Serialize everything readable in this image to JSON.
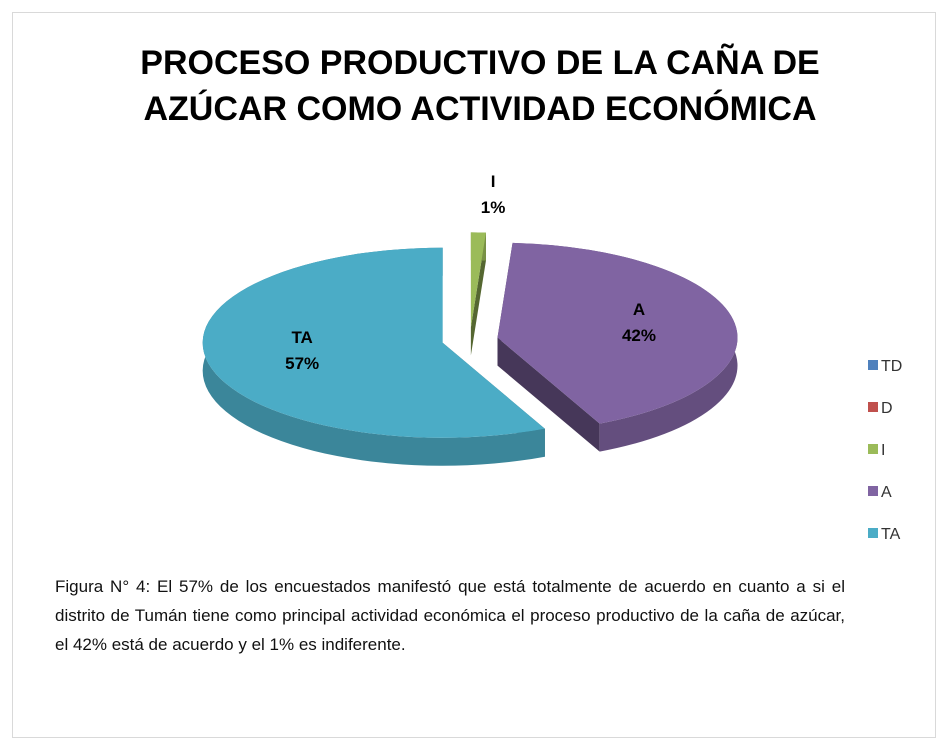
{
  "chart_data": {
    "type": "pie",
    "title": "PROCESO PRODUCTIVO DE LA CAÑA DE AZÚCAR COMO ACTIVIDAD ECONÓMICA",
    "categories": [
      "TD",
      "D",
      "I",
      "A",
      "TA"
    ],
    "values": [
      0,
      0,
      1,
      42,
      57
    ],
    "value_labels": [
      null,
      null,
      "1%",
      "42%",
      "57%"
    ],
    "colors": [
      "#4f81bd",
      "#c0504d",
      "#9bbb59",
      "#8064a2",
      "#4bacc6"
    ],
    "legend": "right",
    "caption": "Figura N° 4: El 57% de los encuestados manifestó que está totalmente de acuerdo en cuanto a si el distrito de Tumán tiene como principal actividad económica el proceso productivo de la caña de azúcar, el 42% está de acuerdo y el 1% es indiferente."
  }
}
